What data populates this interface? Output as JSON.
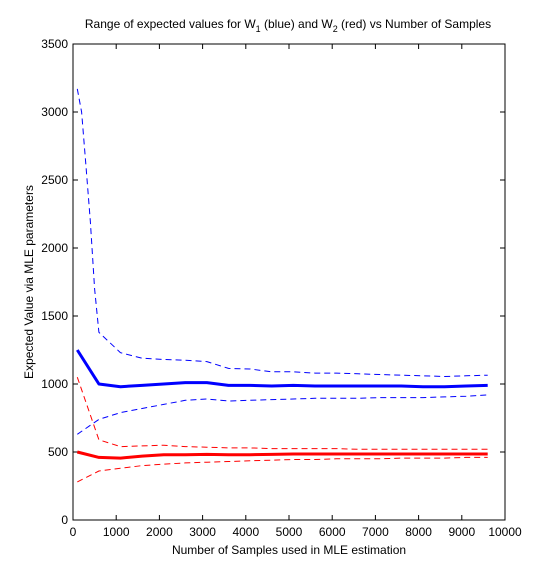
{
  "chart_data": {
    "type": "line",
    "title": {
      "part1": "Range of expected values for W",
      "sub1": "1",
      "part2": " (blue) and W",
      "sub2": "2",
      "part3": " (red) vs Number of Samples"
    },
    "xlabel": "Number of Samples used in MLE estimation",
    "ylabel": "Expected Value via MLE parameters",
    "xlim": [
      0,
      10000
    ],
    "ylim": [
      0,
      3500
    ],
    "xticks": [
      0,
      1000,
      2000,
      3000,
      4000,
      5000,
      6000,
      7000,
      8000,
      9000,
      10000
    ],
    "yticks": [
      0,
      500,
      1000,
      1500,
      2000,
      2500,
      3000,
      3500
    ],
    "grid": false,
    "series": [
      {
        "color": "#0000ff",
        "style": "solid",
        "width": "thick",
        "x": [
          100,
          600,
          1100,
          1600,
          2100,
          2600,
          3100,
          3600,
          4100,
          4600,
          5100,
          5600,
          6100,
          6600,
          7100,
          7600,
          8100,
          8600,
          9100,
          9600
        ],
        "values": [
          1250,
          1000,
          980,
          990,
          1000,
          1010,
          1010,
          990,
          990,
          985,
          990,
          985,
          985,
          985,
          985,
          985,
          980,
          980,
          985,
          990
        ]
      },
      {
        "color": "#0000ff",
        "style": "dashed",
        "width": "thin",
        "x": [
          100,
          200,
          300,
          400,
          500,
          600,
          1100,
          1600,
          2100,
          2600,
          3100,
          3600,
          4100,
          4600,
          5100,
          5600,
          6100,
          6600,
          7100,
          7600,
          8100,
          8600,
          9100,
          9600
        ],
        "values": [
          3170,
          3000,
          2600,
          2200,
          1700,
          1380,
          1230,
          1190,
          1180,
          1175,
          1165,
          1115,
          1110,
          1090,
          1090,
          1080,
          1080,
          1075,
          1070,
          1065,
          1060,
          1055,
          1060,
          1065
        ]
      },
      {
        "color": "#0000ff",
        "style": "dashed",
        "width": "thin",
        "x": [
          100,
          600,
          1100,
          1600,
          2100,
          2600,
          3100,
          3600,
          4100,
          4600,
          5100,
          5600,
          6100,
          6600,
          7100,
          7600,
          8100,
          8600,
          9100,
          9600
        ],
        "values": [
          630,
          740,
          790,
          820,
          850,
          880,
          890,
          875,
          880,
          885,
          890,
          895,
          895,
          895,
          900,
          900,
          900,
          905,
          910,
          920
        ]
      },
      {
        "color": "#ff0000",
        "style": "solid",
        "width": "thick",
        "x": [
          100,
          600,
          1100,
          1600,
          2100,
          2600,
          3100,
          3600,
          4100,
          4600,
          5100,
          5600,
          6100,
          6600,
          7100,
          7600,
          8100,
          8600,
          9100,
          9600
        ],
        "values": [
          500,
          460,
          455,
          470,
          480,
          480,
          482,
          480,
          480,
          482,
          485,
          485,
          485,
          485,
          485,
          485,
          485,
          485,
          485,
          485
        ]
      },
      {
        "color": "#ff0000",
        "style": "dashed",
        "width": "thin",
        "x": [
          100,
          600,
          1100,
          1600,
          2100,
          2600,
          3100,
          3600,
          4100,
          4600,
          5100,
          5600,
          6100,
          6600,
          7100,
          7600,
          8100,
          8600,
          9100,
          9600
        ],
        "values": [
          1050,
          590,
          540,
          545,
          550,
          540,
          535,
          530,
          530,
          525,
          525,
          525,
          525,
          520,
          520,
          520,
          520,
          520,
          520,
          520
        ]
      },
      {
        "color": "#ff0000",
        "style": "dashed",
        "width": "thin",
        "x": [
          100,
          600,
          1100,
          1600,
          2100,
          2600,
          3100,
          3600,
          4100,
          4600,
          5100,
          5600,
          6100,
          6600,
          7100,
          7600,
          8100,
          8600,
          9100,
          9600
        ],
        "values": [
          280,
          360,
          380,
          400,
          410,
          420,
          425,
          430,
          435,
          440,
          445,
          445,
          450,
          450,
          450,
          455,
          455,
          455,
          460,
          460
        ]
      }
    ]
  }
}
